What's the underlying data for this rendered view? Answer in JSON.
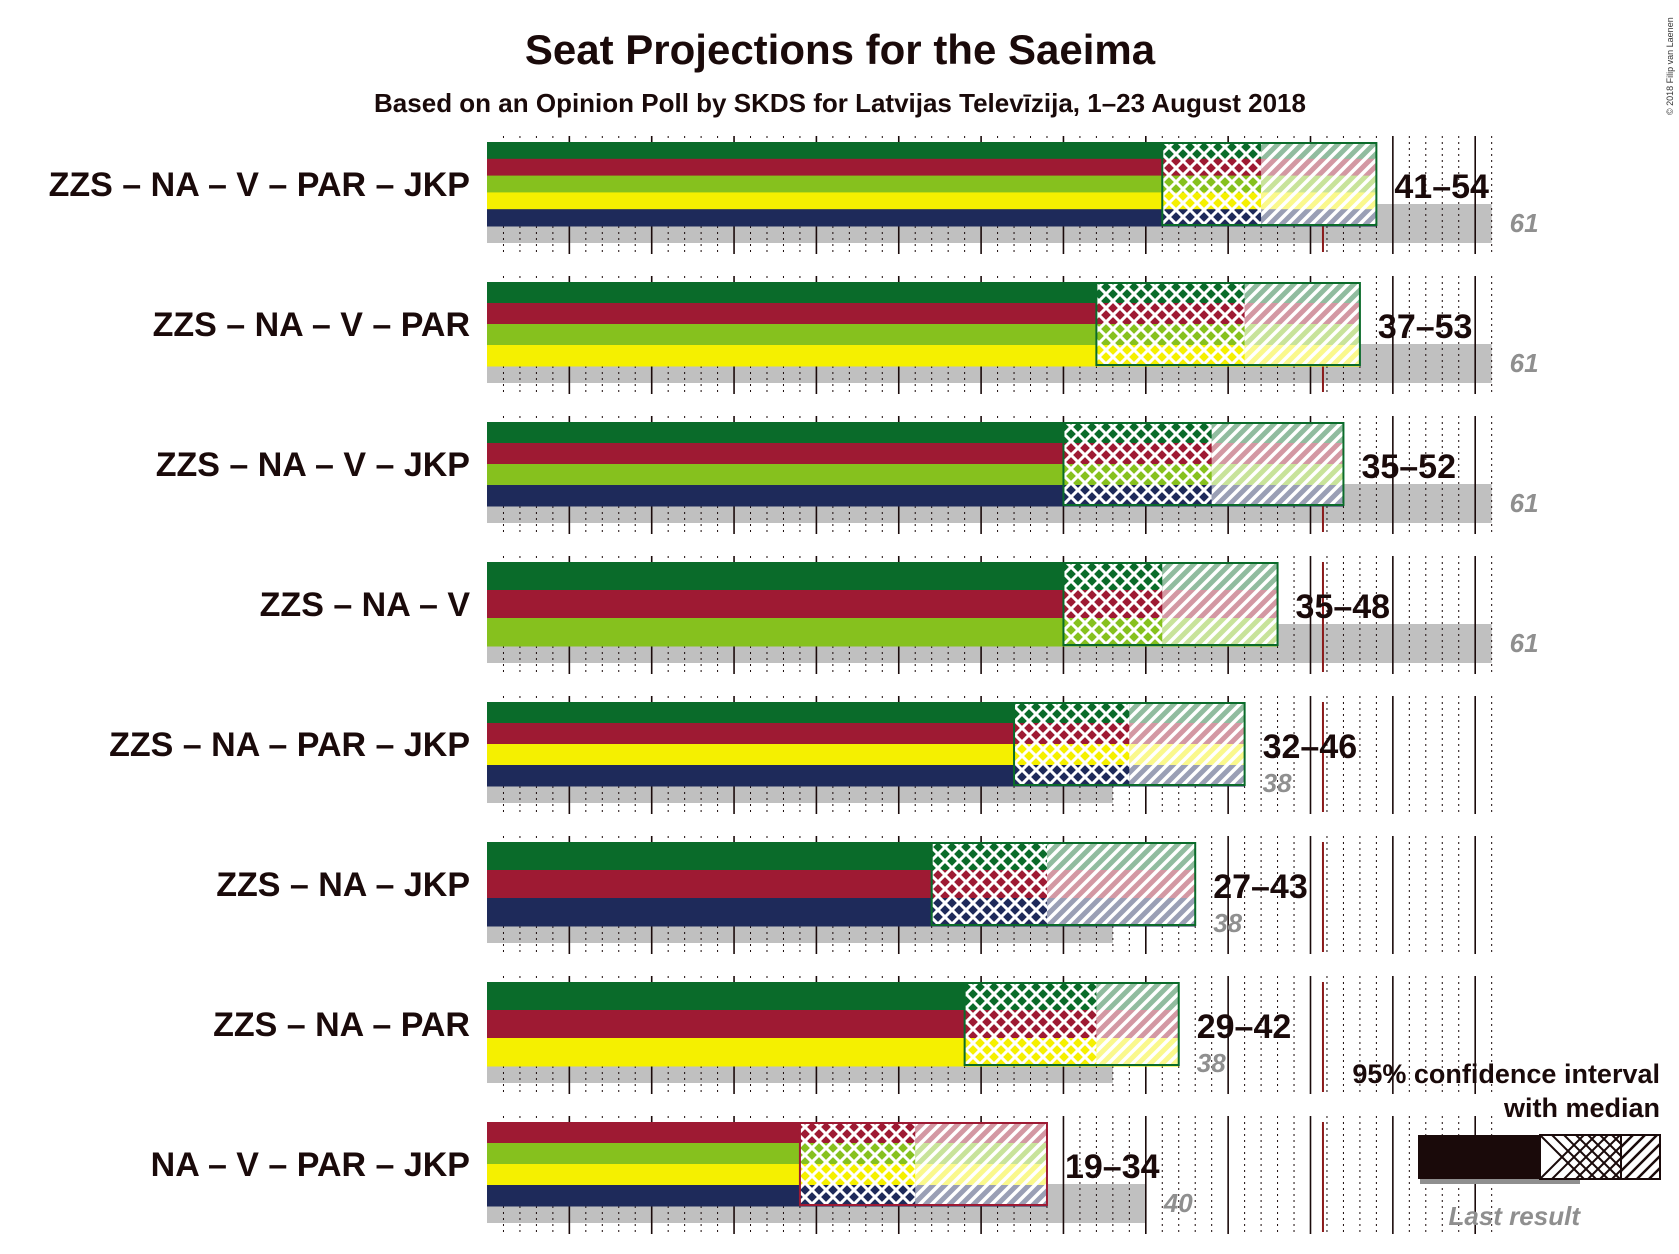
{
  "title": "Seat Projections for the Saeima",
  "subtitle": "Based on an Opinion Poll by SKDS for Latvijas Televīzija, 1–23 August 2018",
  "copyright": "© 2018 Filip van Laenen",
  "legend": {
    "line1": "95% confidence interval",
    "line2": "with median",
    "last_result": "Last result"
  },
  "colors": {
    "ZZS": "#0a6b2a",
    "NA": "#9e1a33",
    "V": "#86c11e",
    "PAR": "#f5f000",
    "JKP": "#1e2a5a",
    "last_result": "#c0c0c0",
    "majority_line": "#8b1a1a"
  },
  "chart_data": {
    "type": "bar",
    "orientation": "horizontal",
    "x_axis": {
      "min": 0,
      "max": 61,
      "unit": "seats",
      "majority": 51
    },
    "coalitions": [
      {
        "label": "ZZS – NA – V – PAR – JKP",
        "parties": [
          "ZZS",
          "NA",
          "V",
          "PAR",
          "JKP"
        ],
        "low": 41,
        "median": 47,
        "high": 54,
        "range_label": "41–54",
        "last_result": 61,
        "last_label": "61"
      },
      {
        "label": "ZZS – NA – V – PAR",
        "parties": [
          "ZZS",
          "NA",
          "V",
          "PAR"
        ],
        "low": 37,
        "median": 46,
        "high": 53,
        "range_label": "37–53",
        "last_result": 61,
        "last_label": "61"
      },
      {
        "label": "ZZS – NA – V – JKP",
        "parties": [
          "ZZS",
          "NA",
          "V",
          "JKP"
        ],
        "low": 35,
        "median": 44,
        "high": 52,
        "range_label": "35–52",
        "last_result": 61,
        "last_label": "61"
      },
      {
        "label": "ZZS – NA – V",
        "parties": [
          "ZZS",
          "NA",
          "V"
        ],
        "low": 35,
        "median": 41,
        "high": 48,
        "range_label": "35–48",
        "last_result": 61,
        "last_label": "61"
      },
      {
        "label": "ZZS – NA – PAR – JKP",
        "parties": [
          "ZZS",
          "NA",
          "PAR",
          "JKP"
        ],
        "low": 32,
        "median": 39,
        "high": 46,
        "range_label": "32–46",
        "last_result": 38,
        "last_label": "38"
      },
      {
        "label": "ZZS – NA – JKP",
        "parties": [
          "ZZS",
          "NA",
          "JKP"
        ],
        "low": 27,
        "median": 34,
        "high": 43,
        "range_label": "27–43",
        "last_result": 38,
        "last_label": "38"
      },
      {
        "label": "ZZS – NA – PAR",
        "parties": [
          "ZZS",
          "NA",
          "PAR"
        ],
        "low": 29,
        "median": 37,
        "high": 42,
        "range_label": "29–42",
        "last_result": 38,
        "last_label": "38"
      },
      {
        "label": "NA – V – PAR – JKP",
        "parties": [
          "NA",
          "V",
          "PAR",
          "JKP"
        ],
        "low": 19,
        "median": 26,
        "high": 34,
        "range_label": "19–34",
        "last_result": 40,
        "last_label": "40"
      }
    ]
  }
}
